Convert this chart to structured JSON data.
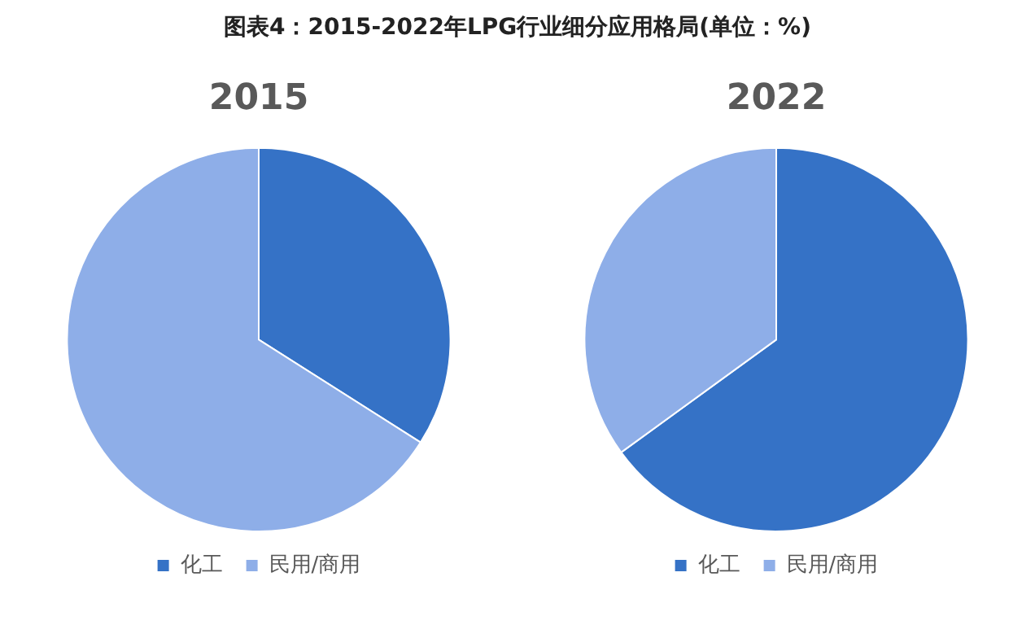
{
  "chart_data": [
    {
      "type": "pie",
      "title": "2015",
      "annotations": [
        "图表4：2015-2022年LPG行业细分应用格局(单位：%)"
      ],
      "categories": [
        "化工",
        "民用/商用"
      ],
      "values": [
        34,
        66
      ],
      "colors": [
        "#3572c6",
        "#8eaee8"
      ],
      "legend": "bottom"
    },
    {
      "type": "pie",
      "title": "2022",
      "categories": [
        "化工",
        "民用/商用"
      ],
      "values": [
        65,
        35
      ],
      "colors": [
        "#3572c6",
        "#8eaee8"
      ],
      "legend": "bottom"
    }
  ]
}
